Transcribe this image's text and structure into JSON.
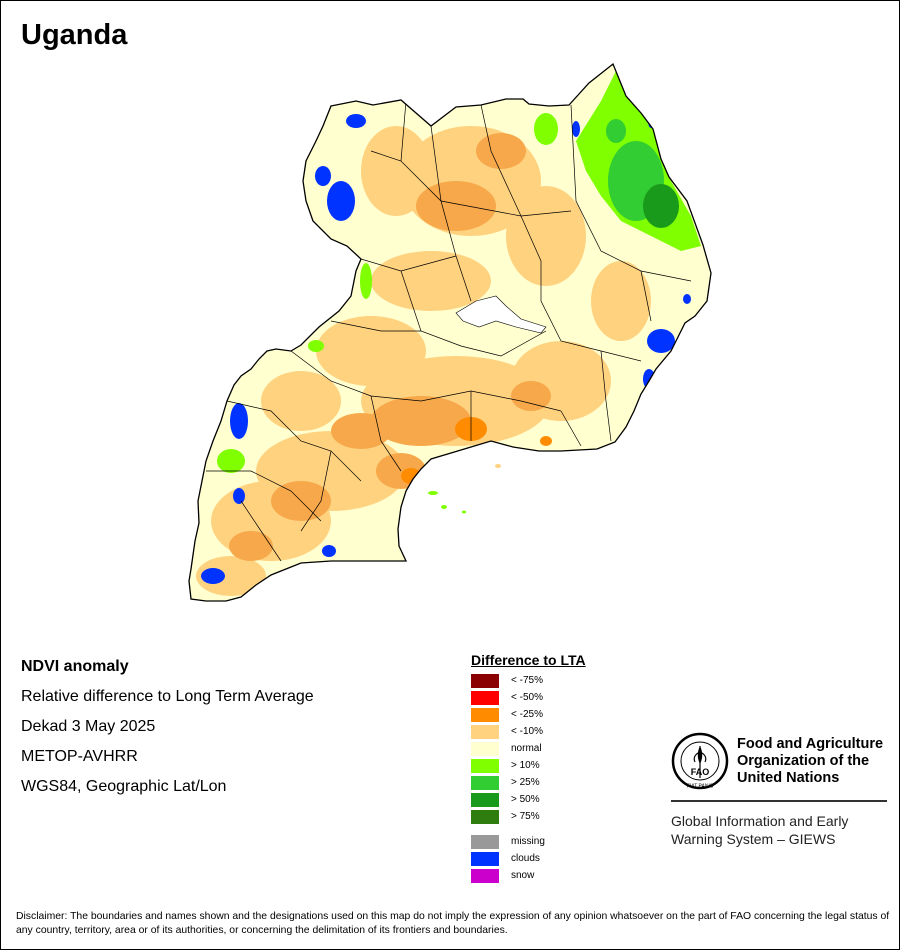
{
  "map": {
    "title": "Uganda"
  },
  "info": {
    "product": "NDVI anomaly",
    "description": "Relative difference to Long Term Average",
    "period": "Dekad 3 May 2025",
    "sensor": "METOP-AVHRR",
    "projection": "WGS84, Geographic Lat/Lon"
  },
  "legend": {
    "title": "Difference to LTA",
    "classes": [
      {
        "label": "< -75%",
        "color": "#8b0000"
      },
      {
        "label": "< -50%",
        "color": "#ff0000"
      },
      {
        "label": "< -25%",
        "color": "#ff8c00"
      },
      {
        "label": "< -10%",
        "color": "#ffd27f"
      },
      {
        "label": "normal",
        "color": "#ffffd0"
      },
      {
        "label": "> 10%",
        "color": "#7fff00"
      },
      {
        "label": "> 25%",
        "color": "#32cd32"
      },
      {
        "label": "> 50%",
        "color": "#1a9a1a"
      },
      {
        "label": "> 75%",
        "color": "#2e7d0e"
      }
    ],
    "special": [
      {
        "label": "missing",
        "color": "#999999"
      },
      {
        "label": "clouds",
        "color": "#0033ff"
      },
      {
        "label": "snow",
        "color": "#cc00cc"
      }
    ]
  },
  "logo": {
    "org_line1": "Food and Agriculture",
    "org_line2": "Organization of the",
    "org_line3": "United Nations",
    "emblem_text": "FAO",
    "motto": "FIAT PANIS",
    "giews_line1": "Global Information and Early",
    "giews_line2": "Warning System – GIEWS"
  },
  "disclaimer": "Disclaimer: The boundaries and names shown and the designations used on this map do not imply the expression of any opinion whatsoever on the part of FAO concerning the legal status of any country, territory, area or of its authorities, or concerning the delimitation of its frontiers and boundaries."
}
